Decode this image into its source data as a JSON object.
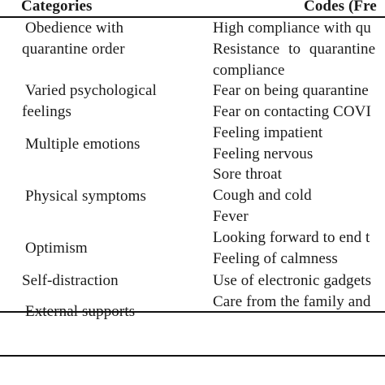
{
  "table": {
    "headers": {
      "categories": "Categories",
      "codes": "Codes (Fre"
    },
    "rows": [
      {
        "category_lines": [
          "Obedience with",
          "quarantine order"
        ],
        "codes": [
          "High compliance with qu",
          "Resistance to quarantine",
          "compliance"
        ]
      },
      {
        "category_lines": [
          "Varied psychological",
          "feelings"
        ],
        "codes": [
          "Fear on being quarantine",
          "Fear on contacting COVI"
        ]
      },
      {
        "category_lines": [
          "Multiple emotions"
        ],
        "codes": [
          "Feeling impatient",
          "Feeling nervous"
        ]
      },
      {
        "category_lines": [
          "Physical symptoms"
        ],
        "codes": [
          "Sore throat",
          "Cough and cold",
          "Fever"
        ]
      },
      {
        "category_lines": [
          "Optimism"
        ],
        "codes": [
          "Looking forward to end t",
          "Feeling of calmness"
        ]
      },
      {
        "category_lines": [
          "Self-distraction"
        ],
        "codes": [
          "Use of electronic gadgets"
        ]
      },
      {
        "category_lines": [
          "External supports"
        ],
        "codes": [
          "Care from the family and"
        ]
      }
    ]
  }
}
